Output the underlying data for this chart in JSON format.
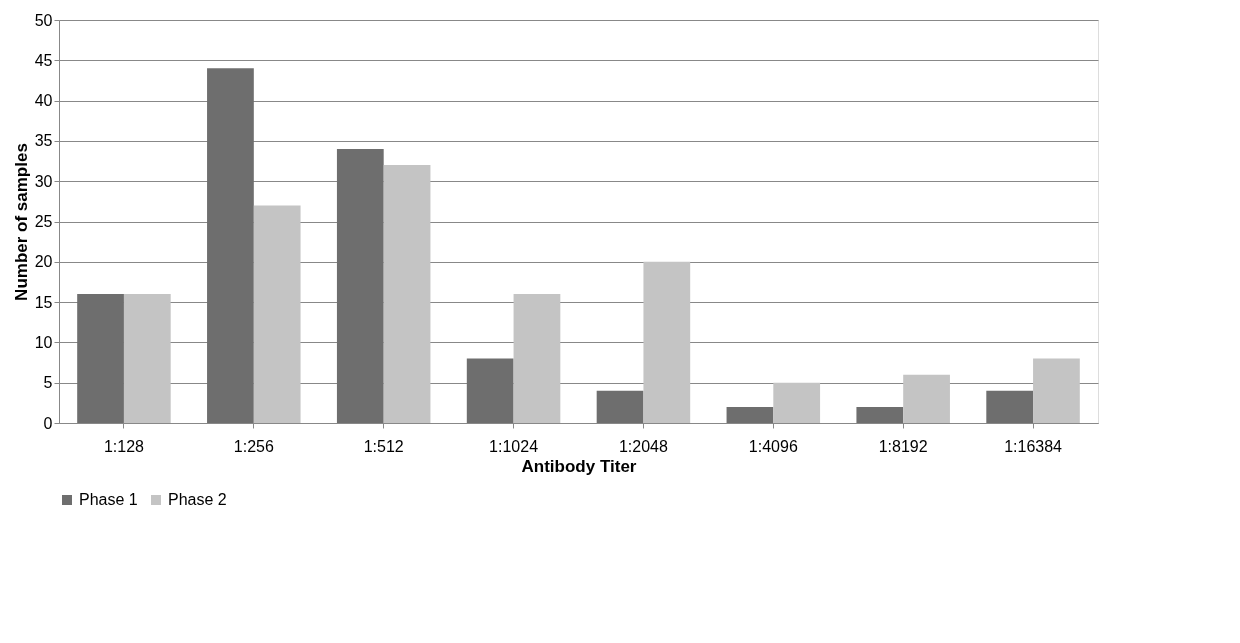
{
  "chart_data": {
    "type": "bar",
    "xlabel": "Antibody Titer",
    "ylabel": "Number of samples",
    "categories": [
      "1:128",
      "1:256",
      "1:512",
      "1:1024",
      "1:2048",
      "1:4096",
      "1:8192",
      "1:16384"
    ],
    "series": [
      {
        "name": "Phase 1",
        "color": "#6e6e6e",
        "values": [
          16,
          44,
          34,
          8,
          4,
          2,
          2,
          4
        ]
      },
      {
        "name": "Phase 2",
        "color": "#c4c4c4",
        "values": [
          16,
          27,
          32,
          16,
          20,
          5,
          6,
          8
        ]
      }
    ],
    "ylim": [
      0,
      50
    ],
    "yticks": [
      0,
      5,
      10,
      15,
      20,
      25,
      30,
      35,
      40,
      45,
      50
    ],
    "grid": "y",
    "legend": "bottom"
  }
}
